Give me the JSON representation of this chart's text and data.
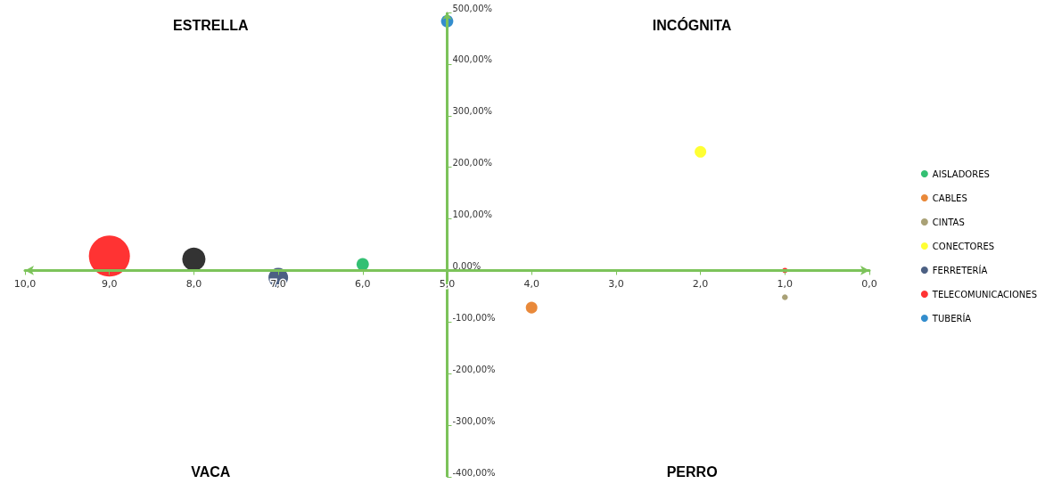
{
  "chart_data": {
    "type": "bubble",
    "annotations": [
      "ESTRELLA",
      "INCÓGNITA",
      "VACA",
      "PERRO"
    ],
    "series": [
      {
        "name": "AISLADORES",
        "color": "#00b050",
        "x": [
          6
        ],
        "values": [
          12
        ],
        "sizes": [
          0.09
        ]
      },
      {
        "name": "CABLES",
        "color": "#e36c09",
        "x": [
          4
        ],
        "values": [
          -72
        ],
        "sizes": [
          0.08
        ]
      },
      {
        "color": "#000000",
        "x": [
          8
        ],
        "values": [
          22
        ],
        "sizes": [
          0.32
        ]
      },
      {
        "name": "CINTAS",
        "color": "#948a54",
        "x": [
          1
        ],
        "values": [
          -52
        ],
        "sizes": [
          0.02
        ]
      },
      {
        "name": "CONECTORES",
        "color": "#ffff00",
        "x": [
          2
        ],
        "values": [
          230
        ],
        "sizes": [
          0.08
        ]
      },
      {
        "name": "FERRETERÍA",
        "color": "#1f3864",
        "x": [
          7
        ],
        "values": [
          -14
        ],
        "sizes": [
          0.23
        ]
      },
      {
        "color": "#ff0000",
        "x": [
          9
        ],
        "values": [
          28
        ],
        "sizes": [
          1
        ]
      },
      {
        "name": "TELECOMUNICACIONES",
        "color": "#ff0000",
        "x": [
          1
        ],
        "values": [
          0
        ],
        "sizes": [
          0.017
        ]
      },
      {
        "name": "TUBERÍA",
        "color": "#0070c0",
        "x": [
          5
        ],
        "values": [
          483
        ],
        "sizes": [
          0.09
        ]
      }
    ],
    "xlim": [
      10,
      0
    ],
    "xticks": [
      {
        "value": 10,
        "label": "10,0"
      },
      {
        "value": 9,
        "label": "9,0"
      },
      {
        "value": 8,
        "label": "8,0"
      },
      {
        "value": 7,
        "label": "7,0"
      },
      {
        "value": 6,
        "label": "6,0"
      },
      {
        "value": 5,
        "label": "5,0"
      },
      {
        "value": 4,
        "label": "4,0"
      },
      {
        "value": 3,
        "label": "3,0"
      },
      {
        "value": 2,
        "label": "2,0"
      },
      {
        "value": 1,
        "label": "1,0"
      },
      {
        "value": 0,
        "label": "0,0"
      }
    ],
    "ylim": [
      -400,
      500
    ],
    "yticks": [
      {
        "value": 500,
        "label": "500,00%"
      },
      {
        "value": 400,
        "label": "400,00%"
      },
      {
        "value": 300,
        "label": "300,00%"
      },
      {
        "value": 200,
        "label": "200,00%"
      },
      {
        "value": 100,
        "label": "100,00%"
      },
      {
        "value": 0,
        "label": "0,00%"
      },
      {
        "value": -100,
        "label": "-100,00%"
      },
      {
        "value": -200,
        "label": "-200,00%"
      },
      {
        "value": -300,
        "label": "-300,00%"
      },
      {
        "value": -400,
        "label": "-400,00%"
      }
    ],
    "ref_lines": [
      {
        "axis": "x",
        "value": 5,
        "color": "#7cc35a"
      }
    ],
    "grid": false,
    "legend": "right",
    "marker": "circle"
  }
}
